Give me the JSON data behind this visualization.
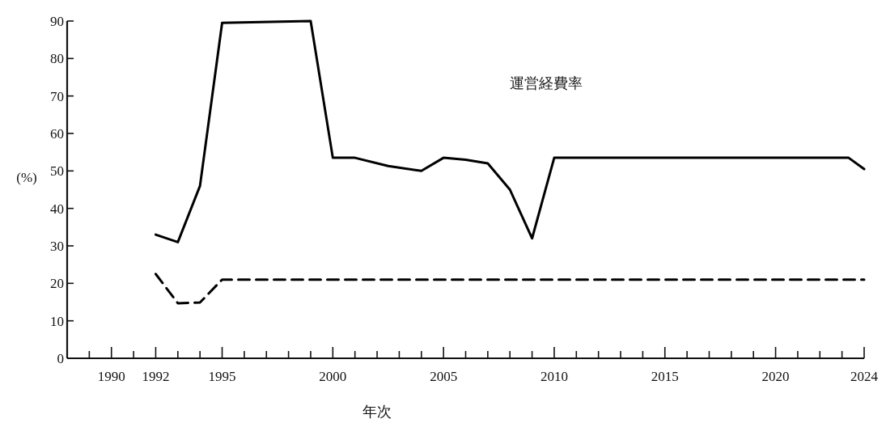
{
  "chart_data": {
    "type": "line",
    "xlabel": "年次",
    "ylabel": "(%)",
    "xlim": [
      1988,
      2024
    ],
    "xticks": [
      {
        "value": 1989,
        "label": null
      },
      1990,
      {
        "value": 1991,
        "label": null
      },
      1992,
      {
        "value": 1993,
        "label": null
      },
      {
        "value": 1994,
        "label": null
      },
      1995,
      {
        "value": 1996,
        "label": null
      },
      {
        "value": 1997,
        "label": null
      },
      {
        "value": 1998,
        "label": null
      },
      {
        "value": 1999,
        "label": null
      },
      2000,
      {
        "value": 2001,
        "label": null
      },
      {
        "value": 2002,
        "label": null
      },
      {
        "value": 2003,
        "label": null
      },
      {
        "value": 2004,
        "label": null
      },
      2005,
      {
        "value": 2006,
        "label": null
      },
      {
        "value": 2007,
        "label": null
      },
      {
        "value": 2008,
        "label": null
      },
      {
        "value": 2009,
        "label": null
      },
      2010,
      {
        "value": 2011,
        "label": null
      },
      {
        "value": 2012,
        "label": null
      },
      {
        "value": 2013,
        "label": null
      },
      {
        "value": 2014,
        "label": null
      },
      2015,
      {
        "value": 2016,
        "label": null
      },
      {
        "value": 2017,
        "label": null
      },
      {
        "value": 2018,
        "label": null
      },
      {
        "value": 2019,
        "label": null
      },
      2020,
      {
        "value": 2021,
        "label": null
      },
      {
        "value": 2022,
        "label": null
      },
      {
        "value": 2023,
        "label": null
      },
      2024
    ],
    "ylim": [
      0,
      90
    ],
    "yticks": [
      0,
      10,
      20,
      30,
      40,
      50,
      60,
      70,
      80,
      90
    ],
    "grid": false,
    "series": [
      {
        "name": "運営経費率",
        "color": "#000000",
        "line_style": "solid",
        "x": [
          1992,
          1993,
          1994,
          1995,
          1999,
          2000,
          2001,
          2002.5,
          2004,
          2005,
          2006,
          2007,
          2008,
          2009,
          2010,
          2023.3,
          2024
        ],
        "values": [
          33,
          31,
          46,
          89.5,
          90,
          53.5,
          53.5,
          51.3,
          50,
          53.5,
          53,
          52,
          45,
          32,
          53.5,
          53.5,
          50.5
        ]
      },
      {
        "color": "#000000",
        "line_style": "dashed",
        "x": [
          1992,
          1993,
          1994,
          1995,
          2024
        ],
        "values": [
          22.5,
          14.7,
          14.9,
          21,
          21
        ]
      }
    ]
  }
}
